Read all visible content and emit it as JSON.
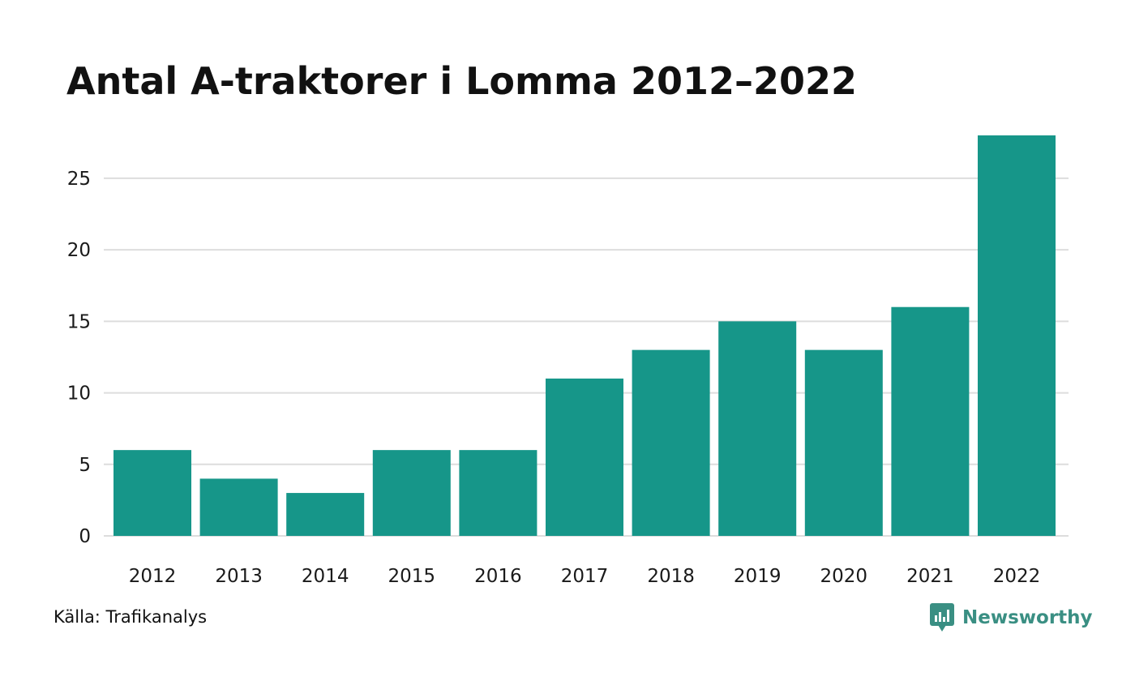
{
  "title": "Antal A-traktorer i Lomma 2012–2022",
  "source": "Källa: Trafikanalys",
  "brand": {
    "name": "Newsworthy",
    "icon": "bar-chart-bubble-icon",
    "color": "#3a8f83"
  },
  "colors": {
    "bar": "#169689",
    "grid": "#dddddd"
  },
  "chart_data": {
    "type": "bar",
    "categories": [
      "2012",
      "2013",
      "2014",
      "2015",
      "2016",
      "2017",
      "2018",
      "2019",
      "2020",
      "2021",
      "2022"
    ],
    "values": [
      6,
      4,
      3,
      6,
      6,
      11,
      13,
      15,
      13,
      16,
      28
    ],
    "yticks": [
      0,
      5,
      10,
      15,
      20,
      25
    ],
    "ylim": [
      0,
      28
    ],
    "grid": true,
    "legend": "none"
  }
}
